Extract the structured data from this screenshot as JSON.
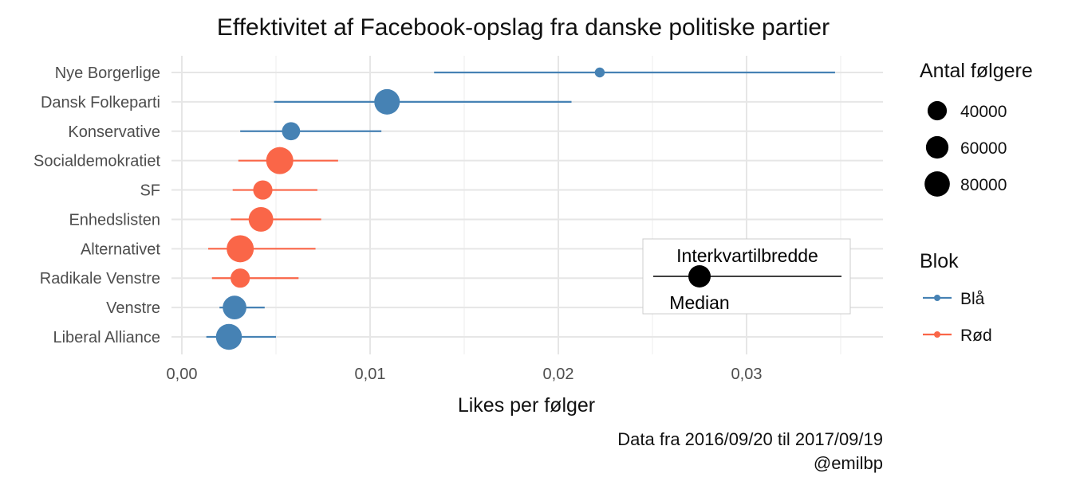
{
  "chart_data": {
    "type": "scatter",
    "title": "Effektivitet af Facebook-opslag fra danske politiske partier",
    "xlabel": "Likes per følger",
    "ylabel": "",
    "xlim": [
      -0.0005,
      0.037
    ],
    "x_ticks": [
      {
        "value": 0.0,
        "label": "0,00"
      },
      {
        "value": 0.01,
        "label": "0,01"
      },
      {
        "value": 0.02,
        "label": "0,02"
      },
      {
        "value": 0.03,
        "label": "0,03"
      }
    ],
    "grid": true,
    "caption": [
      "Data fra 2016/09/20 til 2017/09/19",
      "@emilbp"
    ],
    "colors": {
      "Blå": "#4682B4",
      "Rød": "#FA6648"
    },
    "parties": [
      {
        "name": "Nye Borgerlige",
        "median": 0.0222,
        "low": 0.0134,
        "high": 0.0347,
        "followers": 5000,
        "blok": "Blå"
      },
      {
        "name": "Dansk Folkeparti",
        "median": 0.0109,
        "low": 0.0049,
        "high": 0.0207,
        "followers": 82000,
        "blok": "Blå"
      },
      {
        "name": "Konservative",
        "median": 0.0058,
        "low": 0.0031,
        "high": 0.0106,
        "followers": 34000,
        "blok": "Blå"
      },
      {
        "name": "Socialdemokratiet",
        "median": 0.0052,
        "low": 0.003,
        "high": 0.0083,
        "followers": 95000,
        "blok": "Rød"
      },
      {
        "name": "SF",
        "median": 0.0043,
        "low": 0.0027,
        "high": 0.0072,
        "followers": 40000,
        "blok": "Rød"
      },
      {
        "name": "Enhedslisten",
        "median": 0.0042,
        "low": 0.0026,
        "high": 0.0074,
        "followers": 75000,
        "blok": "Rød"
      },
      {
        "name": "Alternativet",
        "median": 0.0031,
        "low": 0.0014,
        "high": 0.0071,
        "followers": 95000,
        "blok": "Rød"
      },
      {
        "name": "Radikale Venstre",
        "median": 0.0031,
        "low": 0.0016,
        "high": 0.0062,
        "followers": 40000,
        "blok": "Rød"
      },
      {
        "name": "Venstre",
        "median": 0.0028,
        "low": 0.002,
        "high": 0.0044,
        "followers": 68000,
        "blok": "Blå"
      },
      {
        "name": "Liberal Alliance",
        "median": 0.0025,
        "low": 0.0013,
        "high": 0.005,
        "followers": 85000,
        "blok": "Blå"
      }
    ],
    "legend_size": {
      "title": "Antal følgere",
      "entries": [
        {
          "value": 40000,
          "label": "40000"
        },
        {
          "value": 60000,
          "label": "60000"
        },
        {
          "value": 80000,
          "label": "80000"
        }
      ]
    },
    "legend_color": {
      "title": "Blok",
      "entries": [
        {
          "name": "Blå",
          "label": "Blå"
        },
        {
          "name": "Rød",
          "label": "Rød"
        }
      ]
    },
    "key_box": {
      "range_label": "Interkvartilbredde",
      "median_label": "Median"
    }
  }
}
